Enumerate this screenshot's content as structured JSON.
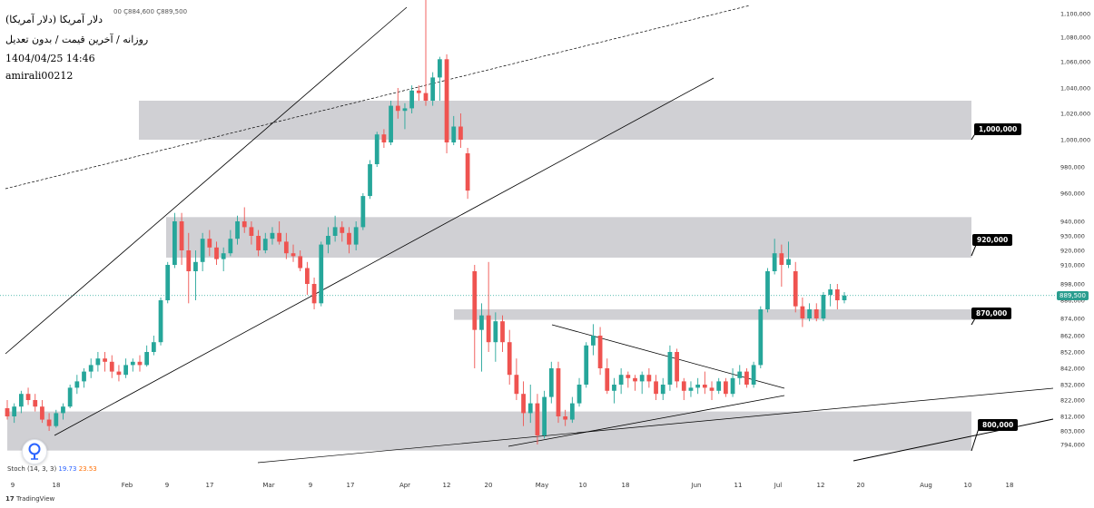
{
  "header": {
    "top_line": "00  Ç884,600  Ç889,500",
    "title": "دلار آمریکا (دلار آمریکا)",
    "subtitle": "روزانه / آخرین قیمت / بدون تعدیل",
    "datetime": "1404/04/25 14:46",
    "author": "amirali00212"
  },
  "indicator": {
    "name": "Stoch",
    "params": "14, 3, 3",
    "v1": "19.73",
    "v2": "23.53"
  },
  "watermark": "TradingView",
  "colors": {
    "up": "#26a69a",
    "down": "#ef5350",
    "zone": "#c8c8cc",
    "price_line": "#26a69a"
  },
  "chart_data": {
    "type": "candlestick",
    "title": "دلار آمریکا (دلار آمریکا)",
    "y_axis": {
      "ticks": [
        794000,
        803000,
        812000,
        822000,
        832000,
        842000,
        852000,
        862000,
        874000,
        886000,
        898000,
        910000,
        920000,
        930000,
        940000,
        960000,
        980000,
        1000000,
        1020000,
        1040000,
        1060000,
        1080000,
        1100000
      ],
      "tick_labels": [
        "794,000",
        "803,000",
        "812,000",
        "822,000",
        "832,000",
        "842,000",
        "852,000",
        "862,000",
        "874,000",
        "886,000",
        "898,000",
        "910,000",
        "920,000",
        "930,000",
        "940,000",
        "960,000",
        "980,000",
        "1,000,000",
        "1,020,000",
        "1,040,000",
        "1,060,000",
        "1,080,000",
        "1,100,000"
      ]
    },
    "x_axis": {
      "tick_labels": [
        "9",
        "18",
        "Feb",
        "9",
        "17",
        "Mar",
        "9",
        "17",
        "Apr",
        "12",
        "20",
        "May",
        "10",
        "18",
        "Jun",
        "11",
        "Jul",
        "12",
        "20",
        "Aug",
        "10",
        "18"
      ]
    },
    "last_price": {
      "value": 889500,
      "label": "889,500"
    },
    "zones": [
      {
        "label": "1,000,000",
        "low": 1000000,
        "high": 1030000
      },
      {
        "label": "920,000",
        "low": 915000,
        "high": 943000
      },
      {
        "label": "870,000",
        "low": 873000,
        "high": 880000
      },
      {
        "label": "800,000",
        "low": 790000,
        "high": 815000
      }
    ],
    "series": [
      {
        "o": 817,
        "h": 822,
        "l": 810,
        "c": 812
      },
      {
        "o": 812,
        "h": 820,
        "l": 808,
        "c": 818
      },
      {
        "o": 818,
        "h": 828,
        "l": 814,
        "c": 826
      },
      {
        "o": 826,
        "h": 830,
        "l": 819,
        "c": 822
      },
      {
        "o": 822,
        "h": 826,
        "l": 815,
        "c": 818
      },
      {
        "o": 818,
        "h": 822,
        "l": 808,
        "c": 810
      },
      {
        "o": 810,
        "h": 814,
        "l": 803,
        "c": 806
      },
      {
        "o": 806,
        "h": 816,
        "l": 805,
        "c": 814
      },
      {
        "o": 814,
        "h": 820,
        "l": 810,
        "c": 818
      },
      {
        "o": 818,
        "h": 832,
        "l": 817,
        "c": 830
      },
      {
        "o": 830,
        "h": 838,
        "l": 826,
        "c": 834
      },
      {
        "o": 834,
        "h": 842,
        "l": 830,
        "c": 840
      },
      {
        "o": 840,
        "h": 848,
        "l": 836,
        "c": 844
      },
      {
        "o": 844,
        "h": 852,
        "l": 840,
        "c": 848
      },
      {
        "o": 848,
        "h": 852,
        "l": 840,
        "c": 846
      },
      {
        "o": 846,
        "h": 850,
        "l": 836,
        "c": 840
      },
      {
        "o": 840,
        "h": 844,
        "l": 834,
        "c": 838
      },
      {
        "o": 838,
        "h": 848,
        "l": 836,
        "c": 844
      },
      {
        "o": 844,
        "h": 848,
        "l": 840,
        "c": 846
      },
      {
        "o": 846,
        "h": 850,
        "l": 840,
        "c": 844
      },
      {
        "o": 844,
        "h": 856,
        "l": 843,
        "c": 852
      },
      {
        "o": 852,
        "h": 862,
        "l": 850,
        "c": 858
      },
      {
        "o": 858,
        "h": 888,
        "l": 856,
        "c": 886
      },
      {
        "o": 886,
        "h": 912,
        "l": 884,
        "c": 910
      },
      {
        "o": 910,
        "h": 946,
        "l": 908,
        "c": 940
      },
      {
        "o": 940,
        "h": 946,
        "l": 910,
        "c": 920
      },
      {
        "o": 920,
        "h": 932,
        "l": 884,
        "c": 906
      },
      {
        "o": 906,
        "h": 920,
        "l": 886,
        "c": 912
      },
      {
        "o": 912,
        "h": 932,
        "l": 906,
        "c": 928
      },
      {
        "o": 928,
        "h": 934,
        "l": 916,
        "c": 922
      },
      {
        "o": 922,
        "h": 926,
        "l": 910,
        "c": 914
      },
      {
        "o": 914,
        "h": 922,
        "l": 906,
        "c": 918
      },
      {
        "o": 918,
        "h": 934,
        "l": 916,
        "c": 928
      },
      {
        "o": 928,
        "h": 944,
        "l": 924,
        "c": 940
      },
      {
        "o": 940,
        "h": 950,
        "l": 932,
        "c": 936
      },
      {
        "o": 936,
        "h": 940,
        "l": 924,
        "c": 930
      },
      {
        "o": 930,
        "h": 934,
        "l": 916,
        "c": 920
      },
      {
        "o": 920,
        "h": 932,
        "l": 918,
        "c": 928
      },
      {
        "o": 928,
        "h": 936,
        "l": 924,
        "c": 932
      },
      {
        "o": 932,
        "h": 940,
        "l": 924,
        "c": 926
      },
      {
        "o": 926,
        "h": 932,
        "l": 914,
        "c": 918
      },
      {
        "o": 918,
        "h": 924,
        "l": 912,
        "c": 916
      },
      {
        "o": 916,
        "h": 920,
        "l": 906,
        "c": 908
      },
      {
        "o": 908,
        "h": 912,
        "l": 890,
        "c": 898
      },
      {
        "o": 898,
        "h": 902,
        "l": 880,
        "c": 884
      },
      {
        "o": 884,
        "h": 926,
        "l": 882,
        "c": 924
      },
      {
        "o": 924,
        "h": 936,
        "l": 918,
        "c": 930
      },
      {
        "o": 930,
        "h": 944,
        "l": 926,
        "c": 936
      },
      {
        "o": 936,
        "h": 940,
        "l": 926,
        "c": 932
      },
      {
        "o": 932,
        "h": 936,
        "l": 918,
        "c": 924
      },
      {
        "o": 924,
        "h": 940,
        "l": 920,
        "c": 936
      },
      {
        "o": 936,
        "h": 960,
        "l": 934,
        "c": 958
      },
      {
        "o": 958,
        "h": 985,
        "l": 956,
        "c": 982
      },
      {
        "o": 982,
        "h": 1006,
        "l": 980,
        "c": 1004
      },
      {
        "o": 1004,
        "h": 1008,
        "l": 994,
        "c": 998
      },
      {
        "o": 998,
        "h": 1030,
        "l": 996,
        "c": 1026
      },
      {
        "o": 1026,
        "h": 1040,
        "l": 1016,
        "c": 1022
      },
      {
        "o": 1022,
        "h": 1028,
        "l": 1008,
        "c": 1024
      },
      {
        "o": 1024,
        "h": 1042,
        "l": 1020,
        "c": 1038
      },
      {
        "o": 1038,
        "h": 1042,
        "l": 1030,
        "c": 1036
      },
      {
        "o": 1036,
        "h": 1120,
        "l": 1026,
        "c": 1030
      },
      {
        "o": 1030,
        "h": 1052,
        "l": 1026,
        "c": 1048
      },
      {
        "o": 1048,
        "h": 1064,
        "l": 1030,
        "c": 1062
      },
      {
        "o": 1062,
        "h": 1066,
        "l": 990,
        "c": 998
      },
      {
        "o": 998,
        "h": 1018,
        "l": 996,
        "c": 1010
      },
      {
        "o": 1010,
        "h": 1020,
        "l": 994,
        "c": 1000
      },
      {
        "o": 990,
        "h": 994,
        "l": 956,
        "c": 962
      },
      {
        "o": 906,
        "h": 910,
        "l": 842,
        "c": 866
      },
      {
        "o": 866,
        "h": 884,
        "l": 840,
        "c": 876
      },
      {
        "o": 876,
        "h": 912,
        "l": 852,
        "c": 858
      },
      {
        "o": 858,
        "h": 878,
        "l": 846,
        "c": 872
      },
      {
        "o": 872,
        "h": 876,
        "l": 852,
        "c": 858
      },
      {
        "o": 858,
        "h": 866,
        "l": 832,
        "c": 838
      },
      {
        "o": 838,
        "h": 848,
        "l": 822,
        "c": 826
      },
      {
        "o": 826,
        "h": 834,
        "l": 806,
        "c": 814
      },
      {
        "o": 814,
        "h": 832,
        "l": 808,
        "c": 820
      },
      {
        "o": 820,
        "h": 826,
        "l": 794,
        "c": 800
      },
      {
        "o": 800,
        "h": 828,
        "l": 798,
        "c": 824
      },
      {
        "o": 824,
        "h": 846,
        "l": 820,
        "c": 842
      },
      {
        "o": 842,
        "h": 846,
        "l": 808,
        "c": 812
      },
      {
        "o": 812,
        "h": 816,
        "l": 806,
        "c": 810
      },
      {
        "o": 810,
        "h": 824,
        "l": 808,
        "c": 820
      },
      {
        "o": 820,
        "h": 836,
        "l": 818,
        "c": 832
      },
      {
        "o": 832,
        "h": 858,
        "l": 830,
        "c": 856
      },
      {
        "o": 856,
        "h": 870,
        "l": 850,
        "c": 862
      },
      {
        "o": 862,
        "h": 868,
        "l": 838,
        "c": 842
      },
      {
        "o": 842,
        "h": 848,
        "l": 826,
        "c": 828
      },
      {
        "o": 828,
        "h": 836,
        "l": 820,
        "c": 832
      },
      {
        "o": 832,
        "h": 842,
        "l": 826,
        "c": 838
      },
      {
        "o": 838,
        "h": 840,
        "l": 830,
        "c": 836
      },
      {
        "o": 836,
        "h": 838,
        "l": 828,
        "c": 834
      },
      {
        "o": 834,
        "h": 840,
        "l": 826,
        "c": 838
      },
      {
        "o": 838,
        "h": 842,
        "l": 830,
        "c": 834
      },
      {
        "o": 834,
        "h": 838,
        "l": 822,
        "c": 826
      },
      {
        "o": 826,
        "h": 836,
        "l": 822,
        "c": 832
      },
      {
        "o": 832,
        "h": 856,
        "l": 828,
        "c": 852
      },
      {
        "o": 852,
        "h": 854,
        "l": 830,
        "c": 834
      },
      {
        "o": 834,
        "h": 836,
        "l": 822,
        "c": 828
      },
      {
        "o": 828,
        "h": 834,
        "l": 824,
        "c": 830
      },
      {
        "o": 830,
        "h": 836,
        "l": 826,
        "c": 832
      },
      {
        "o": 832,
        "h": 840,
        "l": 826,
        "c": 830
      },
      {
        "o": 830,
        "h": 834,
        "l": 822,
        "c": 828
      },
      {
        "o": 828,
        "h": 836,
        "l": 826,
        "c": 834
      },
      {
        "o": 834,
        "h": 836,
        "l": 824,
        "c": 826
      },
      {
        "o": 826,
        "h": 842,
        "l": 824,
        "c": 836
      },
      {
        "o": 836,
        "h": 844,
        "l": 832,
        "c": 840
      },
      {
        "o": 840,
        "h": 842,
        "l": 830,
        "c": 832
      },
      {
        "o": 832,
        "h": 846,
        "l": 830,
        "c": 844
      },
      {
        "o": 844,
        "h": 882,
        "l": 842,
        "c": 880
      },
      {
        "o": 880,
        "h": 908,
        "l": 878,
        "c": 906
      },
      {
        "o": 906,
        "h": 928,
        "l": 904,
        "c": 918
      },
      {
        "o": 918,
        "h": 924,
        "l": 896,
        "c": 910
      },
      {
        "o": 910,
        "h": 926,
        "l": 908,
        "c": 914
      },
      {
        "o": 906,
        "h": 912,
        "l": 878,
        "c": 882
      },
      {
        "o": 882,
        "h": 888,
        "l": 868,
        "c": 874
      },
      {
        "o": 874,
        "h": 884,
        "l": 872,
        "c": 880
      },
      {
        "o": 880,
        "h": 884,
        "l": 872,
        "c": 874
      },
      {
        "o": 874,
        "h": 892,
        "l": 872,
        "c": 890
      },
      {
        "o": 890,
        "h": 898,
        "l": 882,
        "c": 894
      },
      {
        "o": 894,
        "h": 898,
        "l": 880,
        "c": 886
      },
      {
        "o": 886,
        "h": 892,
        "l": 884,
        "c": 889.5
      }
    ]
  }
}
